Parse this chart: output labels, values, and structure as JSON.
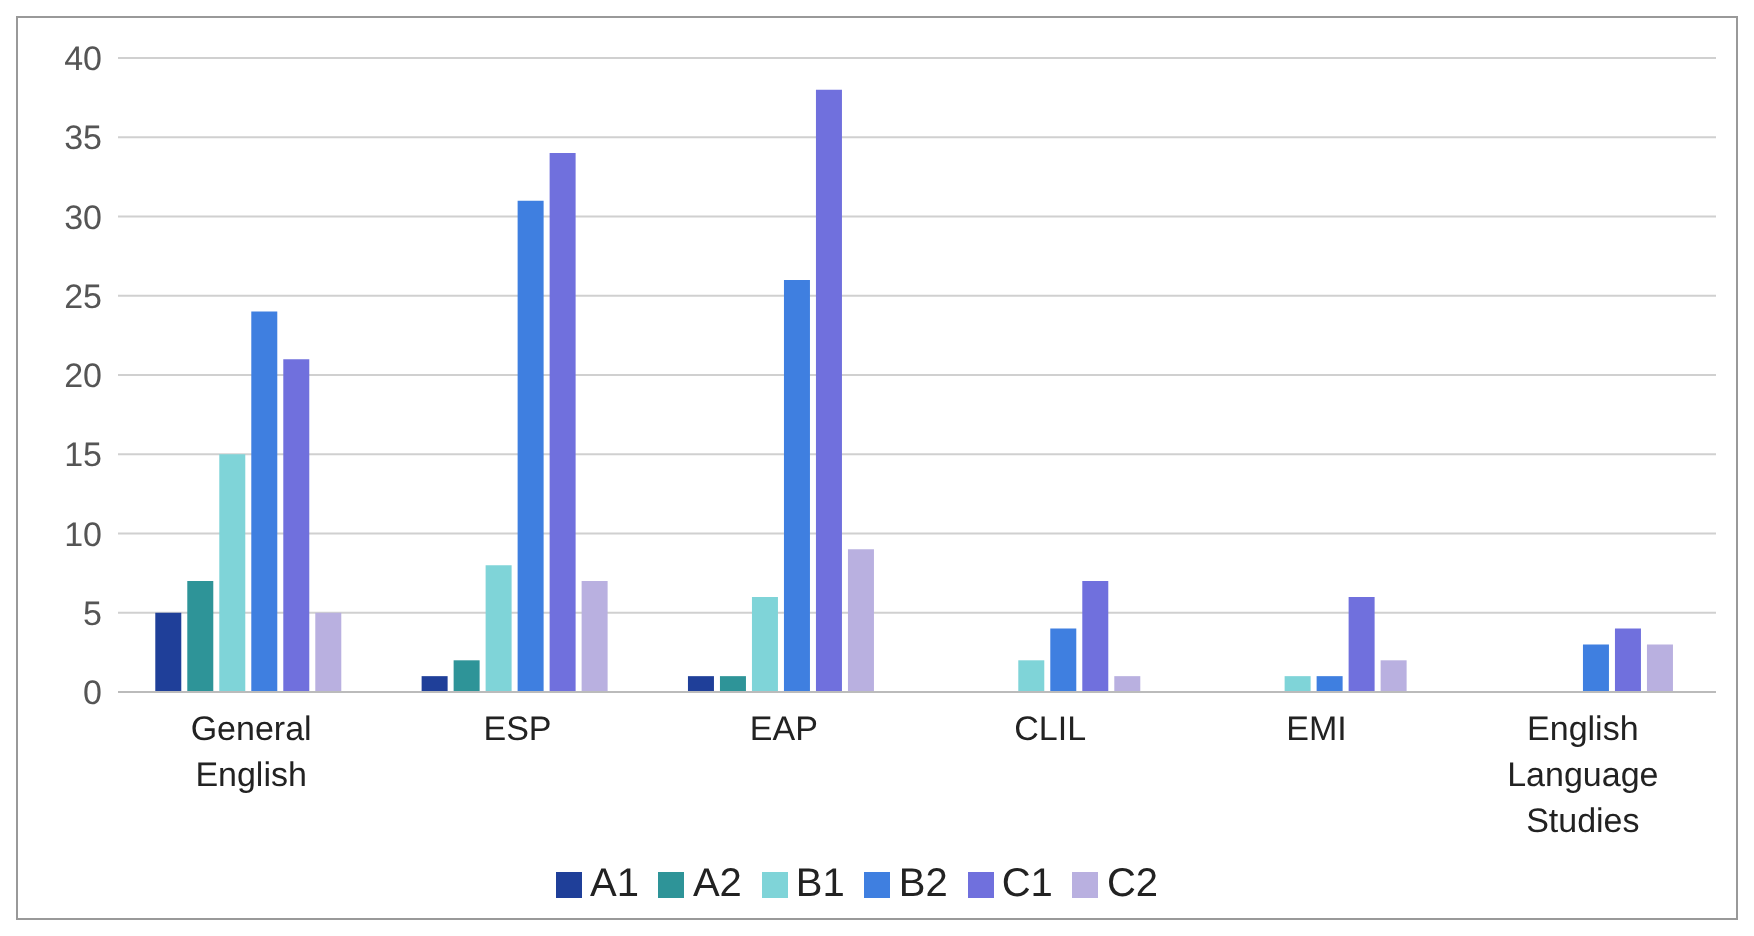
{
  "chart_data": {
    "type": "bar",
    "categories": [
      "General English",
      "ESP",
      "EAP",
      "CLIL",
      "EMI",
      "English Language Studies"
    ],
    "series": [
      {
        "name": "A1",
        "color": "#1f3f99",
        "values": [
          5,
          1,
          1,
          0,
          0,
          0
        ]
      },
      {
        "name": "A2",
        "color": "#2e9498",
        "values": [
          7,
          2,
          1,
          0,
          0,
          0
        ]
      },
      {
        "name": "B1",
        "color": "#7fd4d8",
        "values": [
          15,
          8,
          6,
          2,
          1,
          0
        ]
      },
      {
        "name": "B2",
        "color": "#3f7fe0",
        "values": [
          24,
          31,
          26,
          4,
          1,
          3
        ]
      },
      {
        "name": "C1",
        "color": "#7070dd",
        "values": [
          21,
          34,
          38,
          7,
          6,
          4
        ]
      },
      {
        "name": "C2",
        "color": "#b9b0e0",
        "values": [
          5,
          7,
          9,
          1,
          2,
          3
        ]
      }
    ],
    "ylim": [
      0,
      40
    ],
    "yticks": [
      0,
      5,
      10,
      15,
      20,
      25,
      30,
      35,
      40
    ],
    "grid": "y",
    "legend": "bottom"
  }
}
